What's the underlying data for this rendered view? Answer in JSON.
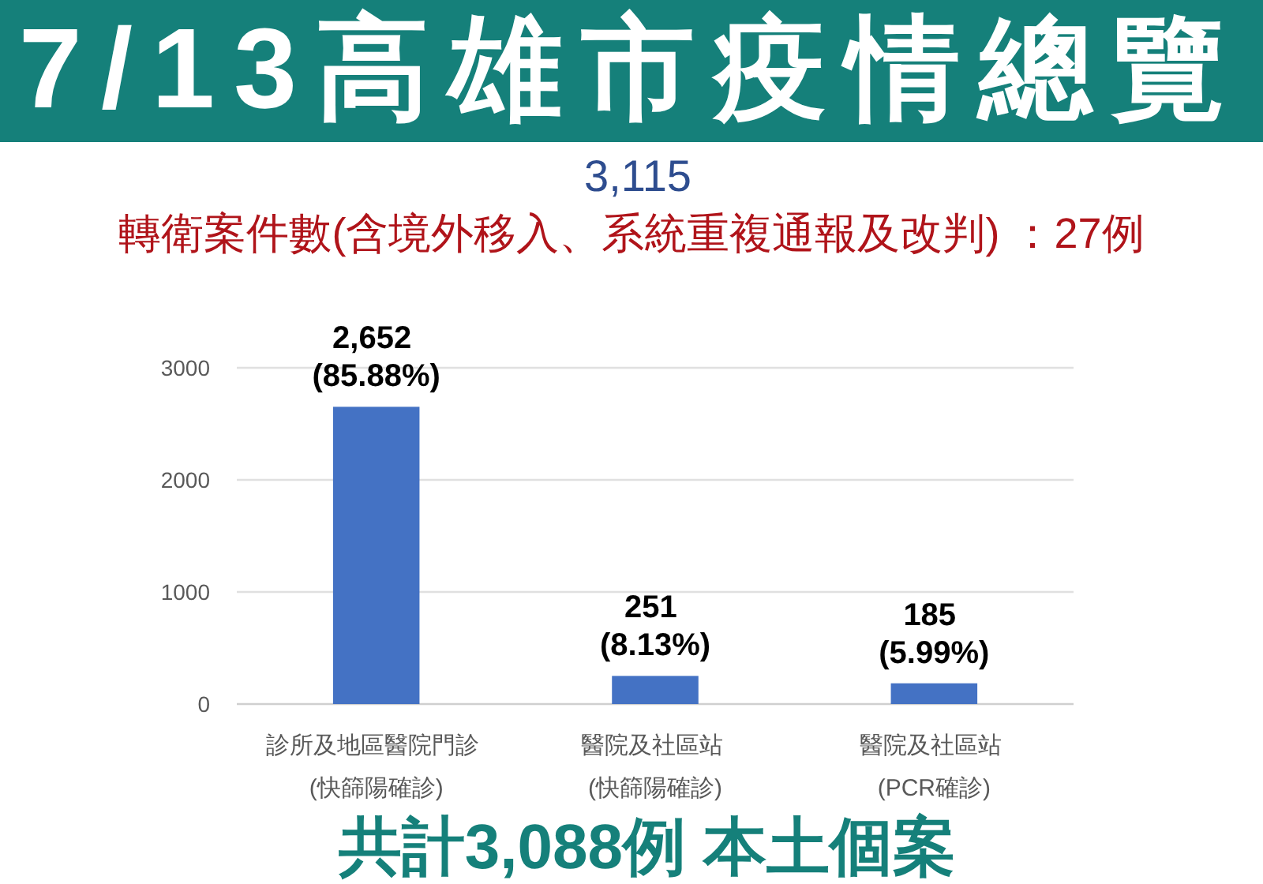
{
  "chart_data": {
    "type": "bar",
    "title": "7/13高雄市疫情總覽",
    "annotations": [
      "3,115",
      "轉衛案件數(含境外移入、系統重複通報及改判)  ：27例",
      "共計3,088例 本土個案"
    ],
    "categories": [
      "診所及地區醫院門診 (快篩陽確診)",
      "醫院及社區站 (快篩陽確診)",
      "醫院及社區站 (PCR確診)"
    ],
    "values": [
      2652,
      251,
      185
    ],
    "value_labels": [
      "2,652 (85.88%)",
      "251 (8.13%)",
      "185 (5.99%)"
    ],
    "color": "#4472c4",
    "ylim": [
      0,
      3000
    ],
    "yticks": [
      0,
      1000,
      2000,
      3000
    ],
    "grid": "y"
  }
}
